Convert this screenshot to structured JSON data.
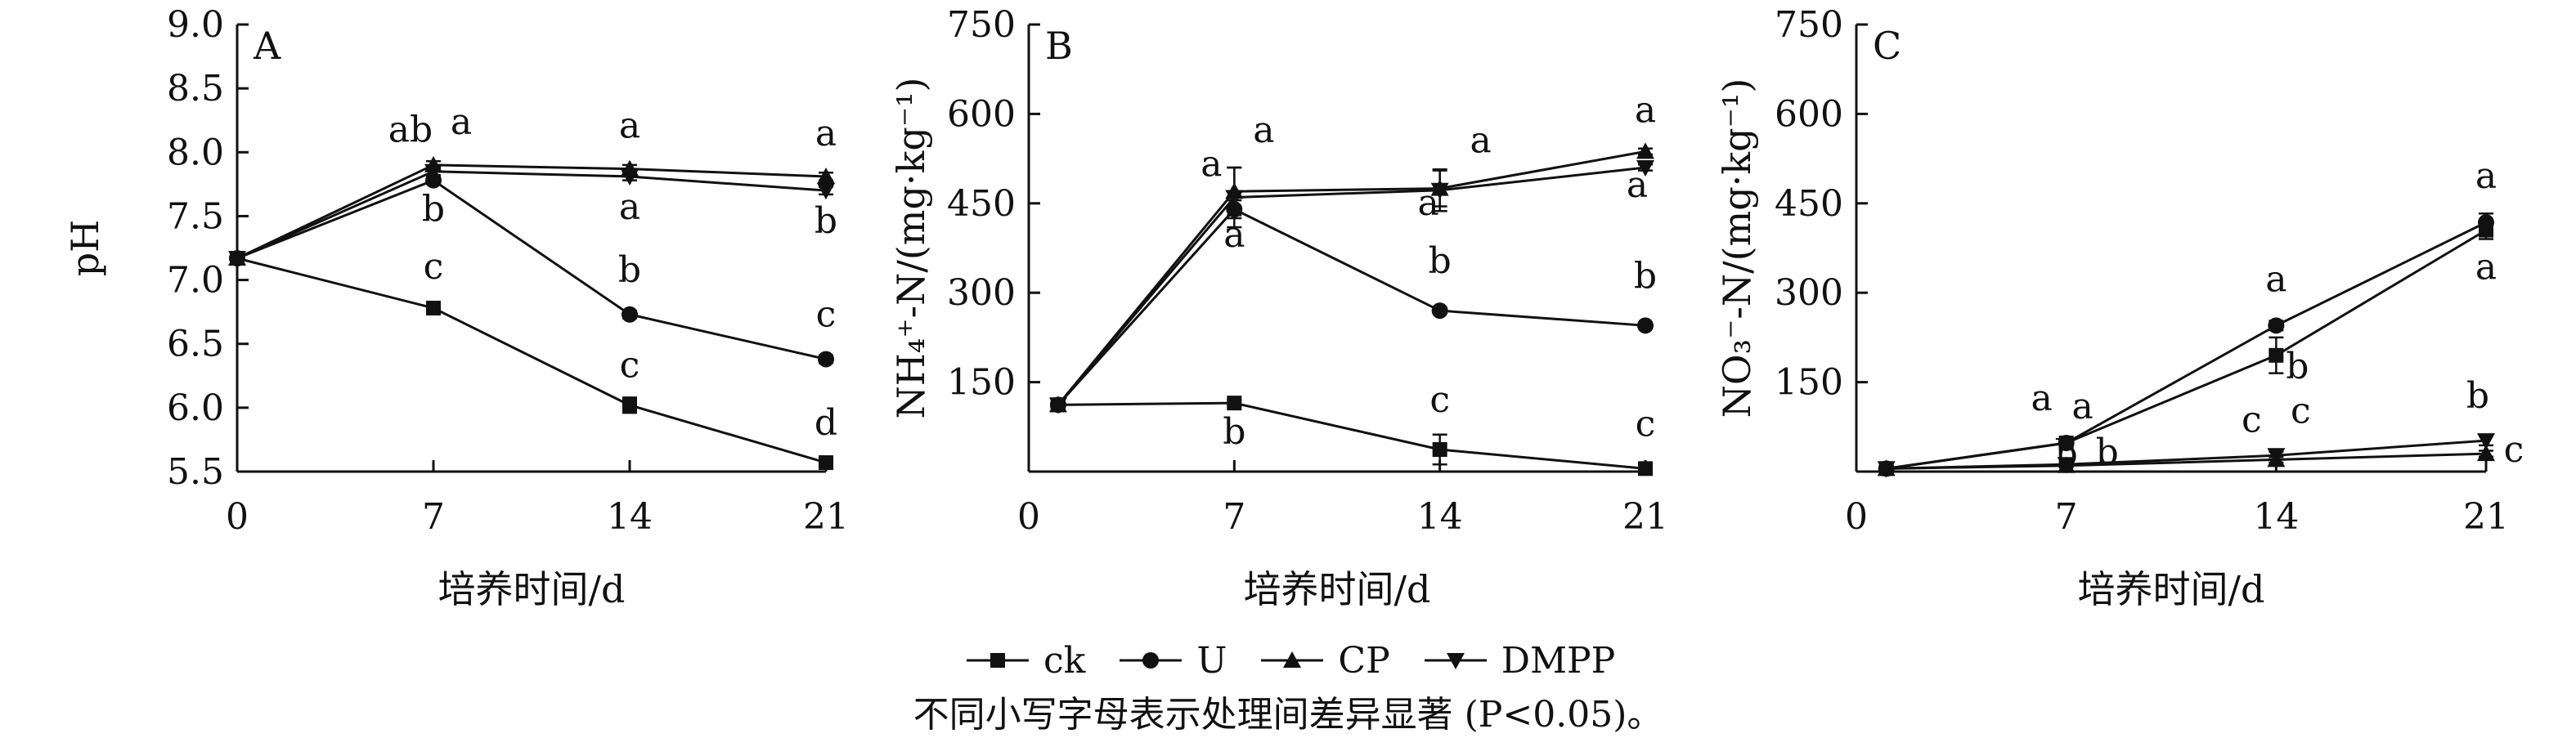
{
  "chart_data": [
    {
      "type": "line",
      "panel": "A",
      "ylabel": "pH",
      "xlabel": "培养时间/d",
      "x": [
        0,
        7,
        14,
        21
      ],
      "xticks": [
        "0",
        "7",
        "14",
        "21"
      ],
      "ylim": [
        5.5,
        9.0
      ],
      "yticks": [
        "5.5",
        "6.0",
        "6.5",
        "7.0",
        "7.5",
        "8.0",
        "8.5",
        "9.0"
      ],
      "series": [
        {
          "name": "ck",
          "marker": "square",
          "values": [
            7.17,
            6.78,
            6.02,
            5.57
          ],
          "err": [
            0.03,
            0.03,
            0.06,
            0.03
          ],
          "letters": [
            "",
            "c",
            "c",
            "d"
          ]
        },
        {
          "name": "U",
          "marker": "circle",
          "values": [
            7.17,
            7.78,
            6.73,
            6.38
          ],
          "err": [
            0.03,
            0.03,
            0.03,
            0.03
          ],
          "letters": [
            "",
            "b",
            "b",
            "c"
          ]
        },
        {
          "name": "CP",
          "marker": "triangle-up",
          "values": [
            7.17,
            7.9,
            7.87,
            7.81
          ],
          "err": [
            0.03,
            0.03,
            0.03,
            0.03
          ],
          "letters": [
            "",
            "a",
            "a",
            "a"
          ]
        },
        {
          "name": "DMPP",
          "marker": "triangle-down",
          "values": [
            7.17,
            7.85,
            7.81,
            7.7
          ],
          "err": [
            0.03,
            0.03,
            0.03,
            0.03
          ],
          "letters": [
            "",
            "ab",
            "a",
            "b"
          ]
        }
      ]
    },
    {
      "type": "line",
      "panel": "B",
      "ylabel": "NH₄⁺-N/(mg·kg⁻¹)",
      "xlabel": "培养时间/d",
      "x": [
        1,
        7,
        14,
        21
      ],
      "xticks": [
        "0",
        "7",
        "14",
        "21"
      ],
      "ylim": [
        0,
        750
      ],
      "yticks": [
        "150",
        "300",
        "450",
        "600",
        "750"
      ],
      "series": [
        {
          "name": "ck",
          "marker": "square",
          "values": [
            112,
            115,
            37,
            5
          ],
          "err": [
            5,
            5,
            25,
            3
          ],
          "letters": [
            "",
            "b",
            "c",
            "c"
          ]
        },
        {
          "name": "U",
          "marker": "circle",
          "values": [
            112,
            440,
            270,
            245
          ],
          "err": [
            5,
            15,
            5,
            5
          ],
          "letters": [
            "",
            "a",
            "b",
            "b"
          ]
        },
        {
          "name": "CP",
          "marker": "triangle-up",
          "values": [
            112,
            470,
            475,
            537
          ],
          "err": [
            5,
            40,
            30,
            5
          ],
          "letters": [
            "",
            "a",
            "a",
            "a"
          ]
        },
        {
          "name": "DMPP",
          "marker": "triangle-down",
          "values": [
            112,
            460,
            472,
            510
          ],
          "err": [
            5,
            50,
            35,
            5
          ],
          "letters": [
            "",
            "a",
            "a",
            "a"
          ]
        }
      ]
    },
    {
      "type": "line",
      "panel": "C",
      "ylabel": "NO₃⁻-N/(mg·kg⁻¹)",
      "xlabel": "培养时间/d",
      "x": [
        1,
        7,
        14,
        21
      ],
      "xticks": [
        "0",
        "7",
        "14",
        "21"
      ],
      "ylim": [
        0,
        750
      ],
      "yticks": [
        "150",
        "300",
        "450",
        "600",
        "750"
      ],
      "series": [
        {
          "name": "ck",
          "marker": "square",
          "values": [
            5,
            48,
            195,
            405
          ],
          "err": [
            3,
            5,
            30,
            15
          ],
          "letters": [
            "",
            "a",
            "b",
            "a"
          ]
        },
        {
          "name": "U",
          "marker": "circle",
          "values": [
            5,
            48,
            245,
            418
          ],
          "err": [
            3,
            5,
            8,
            15
          ],
          "letters": [
            "",
            "a",
            "a",
            "a"
          ]
        },
        {
          "name": "CP",
          "marker": "triangle-up",
          "values": [
            5,
            10,
            20,
            30
          ],
          "err": [
            2,
            3,
            5,
            5
          ],
          "letters": [
            "",
            "b",
            "c",
            "c"
          ]
        },
        {
          "name": "DMPP",
          "marker": "triangle-down",
          "values": [
            5,
            12,
            27,
            52
          ],
          "err": [
            2,
            3,
            6,
            8
          ],
          "letters": [
            "",
            "b",
            "c",
            "b"
          ]
        }
      ]
    }
  ],
  "legend": [
    {
      "name": "ck",
      "marker": "square"
    },
    {
      "name": "U",
      "marker": "circle"
    },
    {
      "name": "CP",
      "marker": "triangle-up"
    },
    {
      "name": "DMPP",
      "marker": "triangle-down"
    }
  ],
  "caption": "不同小写字母表示处理间差异显著 (P<0.05)。"
}
